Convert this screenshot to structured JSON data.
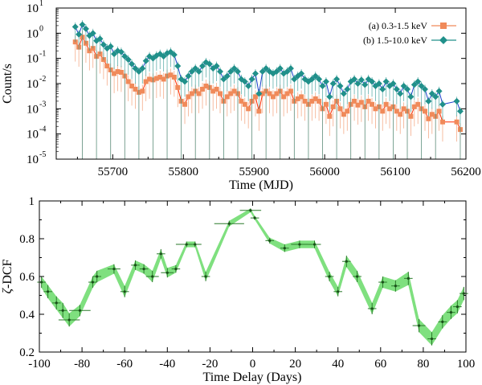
{
  "chart_data": [
    {
      "type": "scatter",
      "panel": "top",
      "xlabel": "Time (MJD)",
      "ylabel": "Count/s",
      "xlim": [
        55620,
        56200
      ],
      "ylim_log10": [
        -5,
        1
      ],
      "x_ticks": [
        55700,
        55800,
        55900,
        56000,
        56100,
        56200
      ],
      "y_ticks": [
        {
          "exp": 1,
          "label": "10",
          "sup": "1"
        },
        {
          "exp": 0,
          "label": "10",
          "sup": "0"
        },
        {
          "exp": -1,
          "label": "10",
          "sup": "-1"
        },
        {
          "exp": -2,
          "label": "10",
          "sup": "-2"
        },
        {
          "exp": -3,
          "label": "10",
          "sup": "-3"
        },
        {
          "exp": -4,
          "label": "10",
          "sup": "-4"
        },
        {
          "exp": -5,
          "label": "10",
          "sup": "-5"
        }
      ],
      "series": [
        {
          "name": "(a) 0.3-1.5 keV",
          "color": "#f08a5a",
          "line_color": "#ff2a00",
          "marker": "square",
          "x": [
            55647,
            55652,
            55657,
            55662,
            55667,
            55672,
            55677,
            55682,
            55687,
            55692,
            55697,
            55702,
            55707,
            55712,
            55717,
            55722,
            55727,
            55732,
            55737,
            55742,
            55747,
            55752,
            55757,
            55762,
            55767,
            55772,
            55777,
            55782,
            55787,
            55792,
            55797,
            55802,
            55807,
            55812,
            55817,
            55822,
            55827,
            55832,
            55837,
            55842,
            55847,
            55852,
            55857,
            55862,
            55867,
            55872,
            55877,
            55882,
            55887,
            55892,
            55897,
            55902,
            55907,
            55912,
            55917,
            55922,
            55927,
            55932,
            55937,
            55942,
            55947,
            55952,
            55957,
            55962,
            55967,
            55972,
            55977,
            55982,
            55987,
            55992,
            55997,
            56002,
            56007,
            56012,
            56017,
            56022,
            56027,
            56032,
            56037,
            56042,
            56047,
            56052,
            56057,
            56062,
            56067,
            56072,
            56077,
            56082,
            56087,
            56092,
            56097,
            56102,
            56107,
            56112,
            56117,
            56122,
            56127,
            56132,
            56137,
            56142,
            56147,
            56152,
            56157,
            56162,
            56167,
            56187,
            56192
          ],
          "y": [
            0.45,
            0.28,
            0.7,
            0.4,
            0.2,
            0.25,
            0.12,
            0.15,
            0.09,
            0.05,
            0.035,
            0.025,
            0.03,
            0.028,
            0.02,
            0.012,
            0.008,
            0.006,
            0.0045,
            0.005,
            0.012,
            0.015,
            0.014,
            0.016,
            0.018,
            0.015,
            0.02,
            0.022,
            0.018,
            0.007,
            0.002,
            0.0015,
            0.003,
            0.004,
            0.005,
            0.004,
            0.006,
            0.008,
            0.007,
            0.005,
            0.006,
            0.004,
            0.002,
            0.003,
            0.004,
            0.005,
            0.004,
            0.002,
            0.0015,
            0.001,
            0.002,
            0.003,
            0.0008,
            0.004,
            0.005,
            0.004,
            0.003,
            0.004,
            0.005,
            0.003,
            0.004,
            0.005,
            0.002,
            0.0025,
            0.003,
            0.002,
            0.0015,
            0.002,
            0.0025,
            0.002,
            0.001,
            0.0015,
            0.0005,
            0.0012,
            0.002,
            0.001,
            0.0006,
            0.0008,
            0.0015,
            0.002,
            0.0014,
            0.0018,
            0.0012,
            0.002,
            0.0015,
            0.001,
            0.0012,
            0.0008,
            0.0015,
            0.001,
            0.0012,
            0.0008,
            0.0006,
            0.001,
            0.0008,
            0.0005,
            0.0012,
            0.0015,
            0.001,
            0.0008,
            0.0004,
            0.0006,
            0.0005,
            0.0008,
            0.0003,
            0.0003,
            0.00015
          ]
        },
        {
          "name": "(b) 1.5-10.0 keV",
          "color": "#20908a",
          "line_color": "#1a3fcc",
          "marker": "diamond",
          "x": [
            55647,
            55652,
            55657,
            55662,
            55667,
            55672,
            55677,
            55682,
            55687,
            55692,
            55697,
            55702,
            55707,
            55712,
            55717,
            55722,
            55727,
            55732,
            55737,
            55742,
            55747,
            55752,
            55757,
            55762,
            55767,
            55772,
            55777,
            55782,
            55787,
            55792,
            55797,
            55802,
            55807,
            55812,
            55817,
            55822,
            55827,
            55832,
            55837,
            55842,
            55847,
            55852,
            55857,
            55862,
            55867,
            55872,
            55877,
            55882,
            55887,
            55892,
            55897,
            55902,
            55907,
            55912,
            55917,
            55922,
            55927,
            55932,
            55937,
            55942,
            55947,
            55952,
            55957,
            55962,
            55967,
            55972,
            55977,
            55982,
            55987,
            55992,
            55997,
            56002,
            56007,
            56012,
            56017,
            56022,
            56027,
            56032,
            56037,
            56042,
            56047,
            56052,
            56057,
            56062,
            56067,
            56072,
            56077,
            56082,
            56087,
            56092,
            56097,
            56102,
            56107,
            56112,
            56117,
            56122,
            56127,
            56132,
            56137,
            56142,
            56147,
            56152,
            56157,
            56162,
            56167,
            56187,
            56192
          ],
          "y": [
            1.8,
            0.9,
            2.2,
            1.5,
            0.8,
            1.0,
            0.5,
            0.6,
            0.35,
            0.25,
            0.3,
            0.15,
            0.2,
            0.18,
            0.12,
            0.09,
            0.06,
            0.04,
            0.03,
            0.04,
            0.08,
            0.12,
            0.1,
            0.13,
            0.15,
            0.12,
            0.16,
            0.18,
            0.14,
            0.05,
            0.015,
            0.012,
            0.02,
            0.03,
            0.04,
            0.03,
            0.05,
            0.07,
            0.06,
            0.04,
            0.05,
            0.03,
            0.015,
            0.02,
            0.03,
            0.04,
            0.03,
            0.015,
            0.012,
            0.008,
            0.015,
            0.025,
            0.004,
            0.03,
            0.04,
            0.03,
            0.025,
            0.03,
            0.04,
            0.025,
            0.03,
            0.04,
            0.015,
            0.02,
            0.025,
            0.015,
            0.012,
            0.015,
            0.02,
            0.015,
            0.008,
            0.012,
            0.003,
            0.01,
            0.015,
            0.008,
            0.004,
            0.006,
            0.012,
            0.015,
            0.01,
            0.014,
            0.009,
            0.015,
            0.012,
            0.008,
            0.01,
            0.006,
            0.012,
            0.008,
            0.01,
            0.006,
            0.004,
            0.008,
            0.006,
            0.003,
            0.009,
            0.012,
            0.008,
            0.006,
            0.002,
            0.004,
            0.003,
            0.005,
            0.0015,
            0.002,
            0.0008
          ]
        }
      ]
    },
    {
      "type": "line",
      "panel": "bottom",
      "ylabel": "ζ-DCF",
      "ylabel_main": "ζ",
      "ylabel_rest": "-DCF",
      "xlabel": "Time Delay (Days)",
      "xlim": [
        -100,
        100
      ],
      "ylim": [
        0.2,
        1.0
      ],
      "x_ticks": [
        -100,
        -80,
        -60,
        -40,
        -20,
        0,
        20,
        40,
        60,
        80,
        100
      ],
      "y_ticks": [
        0.2,
        0.4,
        0.6,
        0.8,
        1.0
      ],
      "y_tick_labels": [
        "0.2",
        "0.4",
        "0.6",
        "0.8",
        "1"
      ],
      "x_tick_labels": [
        "-100",
        "-80",
        "-60",
        "-40",
        "-20",
        "0",
        "20",
        "40",
        "60",
        "80",
        "100"
      ],
      "band_color": "#7fe07f",
      "points": {
        "x": [
          -99,
          -96,
          -92,
          -89,
          -86,
          -81,
          -75,
          -73,
          -65,
          -60,
          -55,
          -51,
          -47,
          -43,
          -40,
          -36,
          -31,
          -27,
          -22,
          -11,
          -1,
          1,
          8,
          15,
          22,
          29,
          36,
          40,
          44,
          49,
          56,
          61,
          67,
          73,
          78,
          84,
          89,
          93,
          96,
          99
        ],
        "y": [
          0.57,
          0.52,
          0.46,
          0.42,
          0.37,
          0.42,
          0.57,
          0.6,
          0.64,
          0.52,
          0.66,
          0.64,
          0.6,
          0.72,
          0.62,
          0.64,
          0.77,
          0.77,
          0.6,
          0.88,
          0.95,
          0.91,
          0.79,
          0.75,
          0.77,
          0.77,
          0.6,
          0.52,
          0.68,
          0.6,
          0.43,
          0.57,
          0.55,
          0.59,
          0.34,
          0.27,
          0.36,
          0.41,
          0.44,
          0.51
        ],
        "xerr": [
          2,
          2,
          2,
          2,
          5,
          5,
          2,
          2,
          3,
          2,
          2,
          2,
          3,
          2,
          3,
          2,
          5,
          3,
          2,
          7,
          5,
          2,
          2,
          2,
          4,
          3,
          2,
          2,
          2,
          2,
          2,
          2,
          2,
          2,
          3,
          2,
          2,
          2,
          2,
          2
        ],
        "band_halfwidth": [
          0.03,
          0.035,
          0.035,
          0.04,
          0.035,
          0.03,
          0.03,
          0.03,
          0.025,
          0.03,
          0.025,
          0.025,
          0.03,
          0.025,
          0.025,
          0.02,
          0.015,
          0.015,
          0.025,
          0.015,
          0.01,
          0.01,
          0.015,
          0.02,
          0.02,
          0.02,
          0.025,
          0.025,
          0.03,
          0.03,
          0.03,
          0.03,
          0.03,
          0.035,
          0.035,
          0.035,
          0.035,
          0.035,
          0.035,
          0.035
        ]
      }
    }
  ]
}
